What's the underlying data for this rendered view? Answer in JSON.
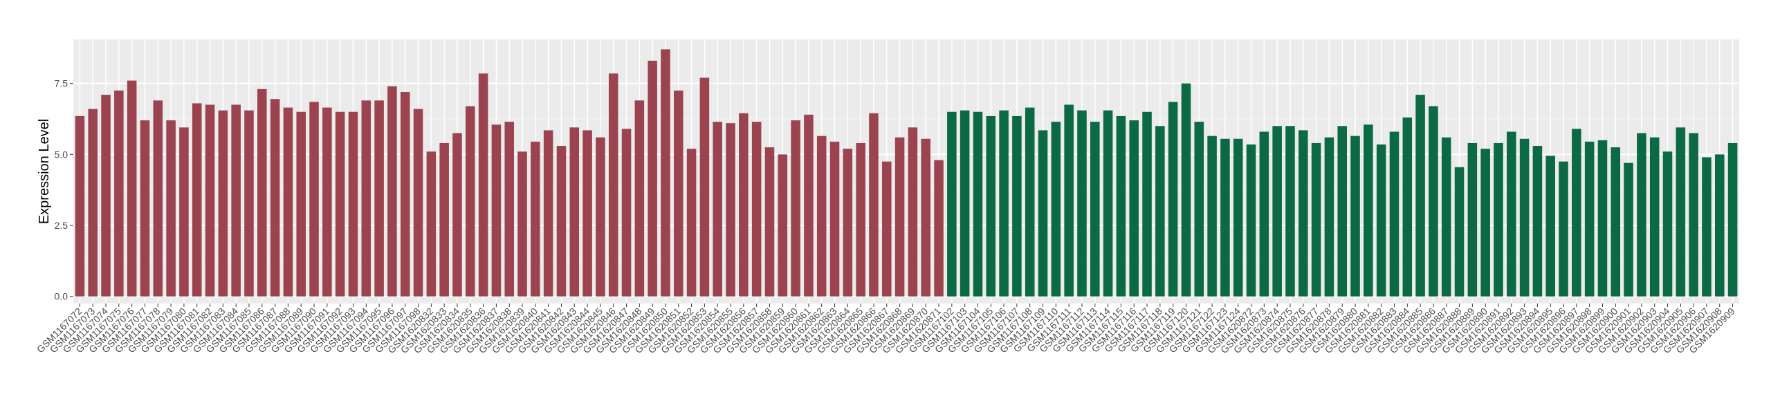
{
  "chart_data": {
    "type": "bar",
    "y_label": "Expression Level",
    "ylim": [
      -0.25,
      9.05
    ],
    "yticks": [
      {
        "value": 0,
        "label": "0.0"
      },
      {
        "value": 2.5,
        "label": "2.5"
      },
      {
        "value": 5,
        "label": "5.0"
      },
      {
        "value": 7.5,
        "label": "7.5"
      }
    ],
    "grid": true,
    "series": [
      {
        "color": "#9b4450",
        "categories": [
          "GSM1167072",
          "GSM1167073",
          "GSM1167074",
          "GSM1167075",
          "GSM1167076",
          "GSM1167077",
          "GSM1167078",
          "GSM1167079",
          "GSM1167080",
          "GSM1167081",
          "GSM1167082",
          "GSM1167083",
          "GSM1167084",
          "GSM1167085",
          "GSM1167086",
          "GSM1167087",
          "GSM1167088",
          "GSM1167089",
          "GSM1167090",
          "GSM1167091",
          "GSM1167092",
          "GSM1167093",
          "GSM1167094",
          "GSM1167095",
          "GSM1167096",
          "GSM1167097",
          "GSM1167098",
          "GSM1620832",
          "GSM1620833",
          "GSM1620834",
          "GSM1620835",
          "GSM1620836",
          "GSM1620837",
          "GSM1620838",
          "GSM1620839",
          "GSM1620840",
          "GSM1620841",
          "GSM1620842",
          "GSM1620843",
          "GSM1620844",
          "GSM1620845",
          "GSM1620846",
          "GSM1620847",
          "GSM1620848",
          "GSM1620849",
          "GSM1620850",
          "GSM1620851",
          "GSM1620852",
          "GSM1620853",
          "GSM1620854",
          "GSM1620855",
          "GSM1620856",
          "GSM1620857",
          "GSM1620858",
          "GSM1620859",
          "GSM1620860",
          "GSM1620861",
          "GSM1620862",
          "GSM1620863",
          "GSM1620864",
          "GSM1620865",
          "GSM1620866",
          "GSM1620867",
          "GSM1620868",
          "GSM1620869",
          "GSM1620870",
          "GSM1620871"
        ],
        "values": [
          6.35,
          6.6,
          7.1,
          7.25,
          7.6,
          6.2,
          6.9,
          6.2,
          5.95,
          6.8,
          6.75,
          6.55,
          6.75,
          6.55,
          7.3,
          6.95,
          6.65,
          6.5,
          6.85,
          6.65,
          6.5,
          6.5,
          6.9,
          6.9,
          7.4,
          7.2,
          6.6,
          5.1,
          5.4,
          5.75,
          6.7,
          7.85,
          6.05,
          6.15,
          5.1,
          5.45,
          5.85,
          5.3,
          5.95,
          5.85,
          5.6,
          7.85,
          5.9,
          6.9,
          8.3,
          8.7,
          7.25,
          5.2,
          7.7,
          6.15,
          6.1,
          6.45,
          6.15,
          5.25,
          5.0,
          6.2,
          6.4,
          5.65,
          5.45,
          5.2,
          5.4,
          6.45,
          4.75,
          5.6,
          5.95,
          5.55,
          4.8
        ]
      },
      {
        "color": "#0b6a43",
        "categories": [
          "GSM1167102",
          "GSM1167103",
          "GSM1167104",
          "GSM1167105",
          "GSM1167106",
          "GSM1167107",
          "GSM1167108",
          "GSM1167109",
          "GSM1167110",
          "GSM1167111",
          "GSM1167112",
          "GSM1167113",
          "GSM1167114",
          "GSM1167115",
          "GSM1167116",
          "GSM1167117",
          "GSM1167118",
          "GSM1167119",
          "GSM1167120",
          "GSM1167121",
          "GSM1167122",
          "GSM1167123",
          "GSM1167124",
          "GSM1620872",
          "GSM1620873",
          "GSM1620874",
          "GSM1620875",
          "GSM1620876",
          "GSM1620877",
          "GSM1620878",
          "GSM1620879",
          "GSM1620880",
          "GSM1620881",
          "GSM1620882",
          "GSM1620883",
          "GSM1620884",
          "GSM1620885",
          "GSM1620886",
          "GSM1620887",
          "GSM1620888",
          "GSM1620889",
          "GSM1620890",
          "GSM1620891",
          "GSM1620892",
          "GSM1620893",
          "GSM1620894",
          "GSM1620895",
          "GSM1620896",
          "GSM1620897",
          "GSM1620898",
          "GSM1620899",
          "GSM1620900",
          "GSM1620901",
          "GSM1620902",
          "GSM1620903",
          "GSM1620904",
          "GSM1620905",
          "GSM1620906",
          "GSM1620907",
          "GSM1620908",
          "GSM1620909"
        ],
        "values": [
          6.5,
          6.55,
          6.5,
          6.35,
          6.55,
          6.35,
          6.65,
          5.85,
          6.15,
          6.75,
          6.55,
          6.15,
          6.55,
          6.35,
          6.2,
          6.5,
          6.0,
          6.85,
          7.5,
          6.15,
          5.65,
          5.55,
          5.55,
          5.35,
          5.8,
          6.0,
          6.0,
          5.85,
          5.4,
          5.6,
          6.0,
          5.65,
          6.05,
          5.35,
          5.8,
          6.3,
          7.1,
          6.7,
          5.6,
          4.55,
          5.4,
          5.2,
          5.4,
          5.8,
          5.55,
          5.3,
          4.95,
          4.75,
          5.9,
          5.45,
          5.5,
          5.25,
          4.7,
          5.75,
          5.6,
          5.1,
          5.95,
          5.75,
          4.9,
          5.0,
          5.4
        ]
      }
    ]
  }
}
